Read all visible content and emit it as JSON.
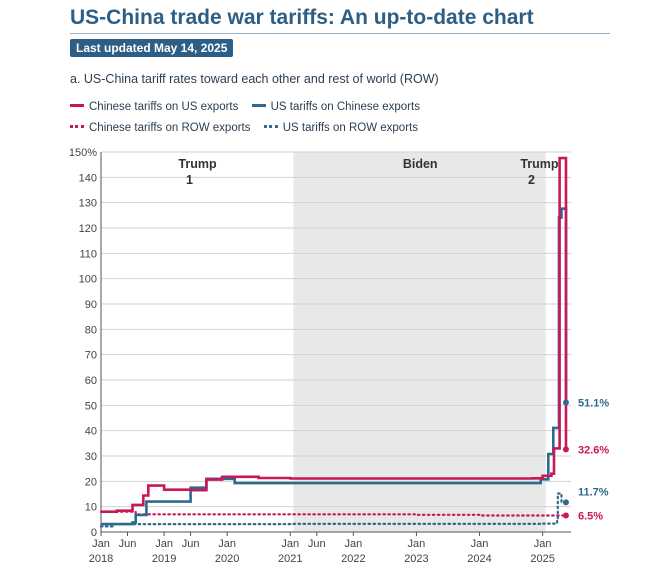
{
  "header": {
    "title": "US-China trade war tariffs: An up-to-date chart",
    "updated": "Last updated May 14, 2025",
    "subtitle": "a. US-China tariff rates toward each other and rest of world (ROW)"
  },
  "colors": {
    "chinese_on_us": "#c8185a",
    "us_on_chinese": "#2d6a8f",
    "chinese_on_row": "#c8185a",
    "us_on_row": "#2d6a8f",
    "shade": "#e8e8e8"
  },
  "chart_data": {
    "type": "line",
    "title": "a. US-China tariff rates toward each other and rest of world (ROW)",
    "xlim": [
      2018.0,
      2025.45
    ],
    "ylim": [
      0,
      150
    ],
    "y_ticks": [
      "0",
      "10",
      "20",
      "30",
      "40",
      "50",
      "60",
      "70",
      "80",
      "90",
      "100",
      "110",
      "120",
      "130",
      "140",
      "150%"
    ],
    "y_tick_values": [
      0,
      10,
      20,
      30,
      40,
      50,
      60,
      70,
      80,
      90,
      100,
      110,
      120,
      130,
      140,
      150
    ],
    "x_ticks": [
      {
        "x": 2018.0,
        "top": "Jan",
        "bottom": "2018"
      },
      {
        "x": 2018.42,
        "top": "Jun",
        "bottom": ""
      },
      {
        "x": 2019.0,
        "top": "Jan",
        "bottom": "2019"
      },
      {
        "x": 2019.42,
        "top": "Jun",
        "bottom": ""
      },
      {
        "x": 2020.0,
        "top": "Jan",
        "bottom": "2020"
      },
      {
        "x": 2021.0,
        "top": "Jan",
        "bottom": "2021"
      },
      {
        "x": 2021.42,
        "top": "Jun",
        "bottom": ""
      },
      {
        "x": 2022.0,
        "top": "Jan",
        "bottom": "2022"
      },
      {
        "x": 2023.0,
        "top": "Jan",
        "bottom": "2023"
      },
      {
        "x": 2024.0,
        "top": "Jan",
        "bottom": "2024"
      },
      {
        "x": 2025.0,
        "top": "Jan",
        "bottom": "2025"
      }
    ],
    "periods": [
      {
        "label": "Trump",
        "label2": "1",
        "start": 2018.0,
        "end": 2021.05,
        "shaded": false
      },
      {
        "label": "Biden",
        "label2": "",
        "start": 2021.05,
        "end": 2025.05,
        "shaded": true
      },
      {
        "label": "Trump",
        "label2": "2",
        "start": 2025.05,
        "end": 2025.45,
        "shaded": false
      }
    ],
    "series": [
      {
        "name": "Chinese tariffs on US exports",
        "style": "solid",
        "color": "#c8185a",
        "points": [
          [
            2018.0,
            8.0
          ],
          [
            2018.25,
            8.4
          ],
          [
            2018.5,
            10.7
          ],
          [
            2018.67,
            14.4
          ],
          [
            2018.75,
            18.3
          ],
          [
            2019.0,
            16.7
          ],
          [
            2019.42,
            16.5
          ],
          [
            2019.67,
            20.7
          ],
          [
            2019.92,
            21.8
          ],
          [
            2020.12,
            21.8
          ],
          [
            2020.5,
            21.3
          ],
          [
            2021.0,
            21.1
          ],
          [
            2022.0,
            21.1
          ],
          [
            2023.0,
            21.1
          ],
          [
            2024.0,
            21.1
          ],
          [
            2024.85,
            21.2
          ],
          [
            2025.0,
            22.2
          ],
          [
            2025.14,
            23.0
          ],
          [
            2025.18,
            33.0
          ],
          [
            2025.27,
            147.6
          ],
          [
            2025.35,
            147.6
          ],
          [
            2025.37,
            32.6
          ]
        ],
        "end_label": "32.6%",
        "end_value": 32.6
      },
      {
        "name": "US tariffs on Chinese exports",
        "style": "solid",
        "color": "#2d6a8f",
        "points": [
          [
            2018.0,
            3.1
          ],
          [
            2018.5,
            3.8
          ],
          [
            2018.55,
            6.7
          ],
          [
            2018.72,
            12.0
          ],
          [
            2019.42,
            17.5
          ],
          [
            2019.67,
            21.0
          ],
          [
            2020.12,
            19.3
          ],
          [
            2021.0,
            19.3
          ],
          [
            2022.0,
            19.3
          ],
          [
            2023.0,
            19.3
          ],
          [
            2024.0,
            19.3
          ],
          [
            2024.72,
            19.3
          ],
          [
            2024.97,
            20.8
          ],
          [
            2025.09,
            30.8
          ],
          [
            2025.17,
            41.1
          ],
          [
            2025.26,
            124.1
          ],
          [
            2025.3,
            127.6
          ],
          [
            2025.37,
            51.1
          ]
        ],
        "end_label": "51.1%",
        "end_value": 51.1
      },
      {
        "name": "Chinese tariffs on ROW exports",
        "style": "dotted",
        "color": "#c8185a",
        "points": [
          [
            2018.0,
            8.0
          ],
          [
            2018.45,
            8.0
          ],
          [
            2018.55,
            7.0
          ],
          [
            2021.0,
            7.0
          ],
          [
            2022.0,
            7.0
          ],
          [
            2023.0,
            6.8
          ],
          [
            2024.0,
            6.5
          ],
          [
            2025.37,
            6.5
          ]
        ],
        "end_label": "6.5%",
        "end_value": 6.5
      },
      {
        "name": "US tariffs on ROW exports",
        "style": "dotted",
        "color": "#2d6a8f",
        "points": [
          [
            2018.0,
            2.2
          ],
          [
            2018.2,
            3.1
          ],
          [
            2021.0,
            3.2
          ],
          [
            2025.0,
            3.3
          ],
          [
            2025.23,
            4.5
          ],
          [
            2025.24,
            15.2
          ],
          [
            2025.3,
            11.7
          ],
          [
            2025.37,
            11.7
          ]
        ],
        "end_label": "11.7%",
        "end_value": 11.7
      }
    ]
  }
}
